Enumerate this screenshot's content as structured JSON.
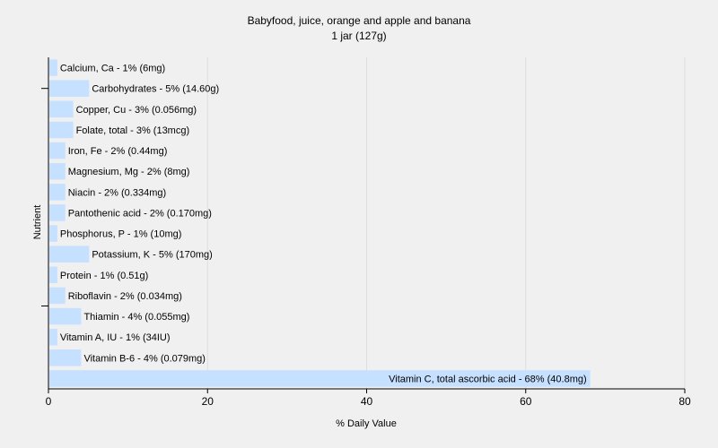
{
  "chart_data": {
    "type": "bar",
    "orientation": "horizontal",
    "title": "Babyfood, juice, orange and apple and banana",
    "subtitle": "1 jar (127g)",
    "xlabel": "% Daily Value",
    "ylabel": "Nutrient",
    "xlim": [
      0,
      80
    ],
    "xticks": [
      0,
      20,
      40,
      60,
      80
    ],
    "grid": true,
    "bar_color": "#c6e0ff",
    "categories": [
      "Calcium, Ca",
      "Carbohydrates",
      "Copper, Cu",
      "Folate, total",
      "Iron, Fe",
      "Magnesium, Mg",
      "Niacin",
      "Pantothenic acid",
      "Phosphorus, P",
      "Potassium, K",
      "Protein",
      "Riboflavin",
      "Thiamin",
      "Vitamin A, IU",
      "Vitamin B-6",
      "Vitamin C, total ascorbic acid"
    ],
    "values": [
      1,
      5,
      3,
      3,
      2,
      2,
      2,
      2,
      1,
      5,
      1,
      2,
      4,
      1,
      4,
      68
    ],
    "labels": [
      "Calcium, Ca - 1% (6mg)",
      "Carbohydrates - 5% (14.60g)",
      "Copper, Cu - 3% (0.056mg)",
      "Folate, total - 3% (13mcg)",
      "Iron, Fe - 2% (0.44mg)",
      "Magnesium, Mg - 2% (8mg)",
      "Niacin - 2% (0.334mg)",
      "Pantothenic acid - 2% (0.170mg)",
      "Phosphorus, P - 1% (10mg)",
      "Potassium, K - 5% (170mg)",
      "Protein - 1% (0.51g)",
      "Riboflavin - 2% (0.034mg)",
      "Thiamin - 4% (0.055mg)",
      "Vitamin A, IU - 1% (34IU)",
      "Vitamin B-6 - 4% (0.079mg)",
      "Vitamin C, total ascorbic acid - 68% (40.8mg)"
    ]
  }
}
